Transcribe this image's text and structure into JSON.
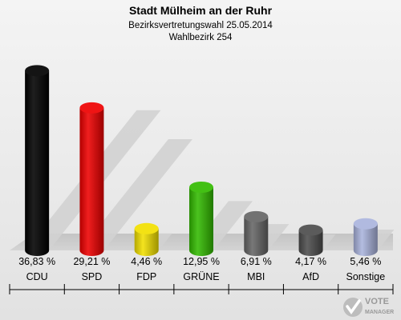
{
  "chart_data": {
    "type": "bar",
    "title": "Stadt Mülheim an der Ruhr",
    "subtitle": "Bezirksvertretungswahl 25.05.2014",
    "subtitle2": "Wahlbezirk 254",
    "categories": [
      "CDU",
      "SPD",
      "FDP",
      "GRÜNE",
      "MBI",
      "AfD",
      "Sonstige"
    ],
    "values": [
      36.83,
      29.21,
      4.46,
      12.95,
      6.91,
      4.17,
      5.46
    ],
    "value_labels": [
      "36,83 %",
      "29,21 %",
      "4,46 %",
      "12,95 %",
      "6,91 %",
      "4,17 %",
      "5,46 %"
    ],
    "colors": [
      "#000000",
      "#ee0000",
      "#f2e000",
      "#33bb00",
      "#666666",
      "#4d4d4d",
      "#aab4dd"
    ],
    "ylim": [
      0,
      40
    ],
    "grid": false,
    "legend": "none"
  },
  "branding": {
    "logo_text_1": "VOTE",
    "logo_text_2": "MANAGER"
  }
}
